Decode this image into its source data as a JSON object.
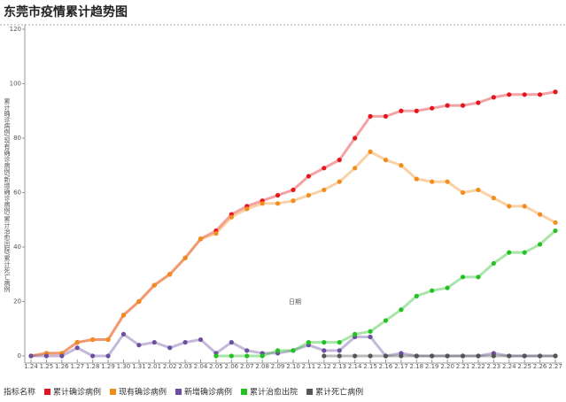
{
  "chart_data": {
    "type": "line",
    "title": "东莞市疫情累计趋势图",
    "x_label": "日期",
    "y_label": "累计确诊病例/现有确诊病例/新增确诊病例/累计治愈出院/累计死亡病例",
    "legend_title": "指标名称",
    "categories": [
      "1.24",
      "1.25",
      "1.26",
      "1.27",
      "1.28",
      "1.29",
      "1.30",
      "1.31",
      "2.01",
      "2.02",
      "2.03",
      "2.04",
      "2.05",
      "2.06",
      "2.07",
      "2.08",
      "2.09",
      "2.10",
      "2.11",
      "2.12",
      "2.13",
      "2.14",
      "2.15",
      "2.16",
      "2.17",
      "2.18",
      "2.19",
      "2.20",
      "2.21",
      "2.22",
      "2.23",
      "2.24",
      "2.25",
      "2.26",
      "2.27"
    ],
    "ylim": [
      0,
      120
    ],
    "yticks": [
      0,
      20,
      40,
      60,
      80,
      100,
      120
    ],
    "grid": false,
    "series": [
      {
        "name": "累计确诊病例",
        "color": "#e3161d",
        "values": [
          0,
          1,
          1,
          5,
          6,
          6,
          15,
          20,
          26,
          30,
          36,
          43,
          46,
          52,
          55,
          57,
          59,
          61,
          66,
          69,
          72,
          80,
          88,
          88,
          90,
          90,
          91,
          92,
          92,
          93,
          95,
          96,
          96,
          96,
          97
        ]
      },
      {
        "name": "现有确诊病例",
        "color": "#f28c1b",
        "values": [
          0,
          1,
          1,
          5,
          6,
          6,
          15,
          20,
          26,
          30,
          36,
          43,
          45,
          51,
          54,
          56,
          56,
          57,
          59,
          61,
          64,
          69,
          75,
          72,
          70,
          65,
          64,
          64,
          60,
          61,
          58,
          55,
          55,
          52,
          49
        ]
      },
      {
        "name": "新增确诊病例",
        "color": "#6c4f9e",
        "values": [
          0,
          0,
          0,
          3,
          0,
          0,
          8,
          4,
          5,
          3,
          5,
          6,
          1,
          5,
          2,
          1,
          1,
          2,
          4,
          2,
          2,
          7,
          7,
          0,
          1,
          0,
          0,
          0,
          0,
          0,
          1,
          0,
          0,
          0,
          0
        ]
      },
      {
        "name": "累计治愈出院",
        "color": "#23c123",
        "values": [
          null,
          null,
          null,
          null,
          null,
          null,
          null,
          null,
          null,
          null,
          null,
          null,
          0,
          0,
          0,
          0,
          2,
          2,
          5,
          5,
          5,
          8,
          9,
          13,
          17,
          22,
          24,
          25,
          29,
          29,
          34,
          38,
          38,
          41,
          46
        ]
      },
      {
        "name": "累计死亡病例",
        "color": "#555555",
        "values": [
          null,
          null,
          null,
          null,
          null,
          null,
          null,
          null,
          null,
          null,
          null,
          null,
          null,
          null,
          null,
          null,
          null,
          null,
          null,
          0,
          0,
          0,
          0,
          0,
          0,
          0,
          0,
          0,
          0,
          0,
          0,
          0,
          0,
          0,
          0
        ]
      }
    ]
  }
}
